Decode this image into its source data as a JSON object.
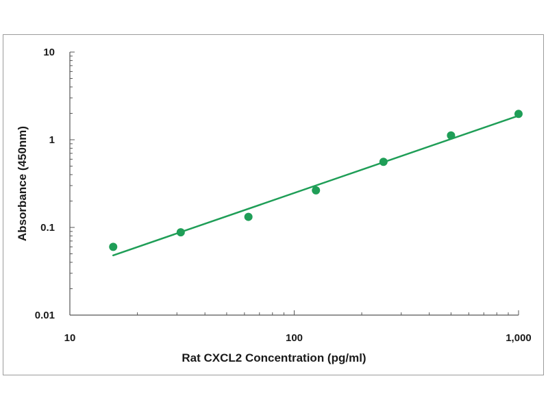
{
  "chart_data": {
    "type": "scatter",
    "xlabel": "Rat CXCL2 Concentration (pg/ml)",
    "ylabel": "Absorbance (450nm)",
    "x_scale": "log",
    "y_scale": "log",
    "xlim": [
      10,
      1000
    ],
    "ylim": [
      0.01,
      10
    ],
    "x_ticks": [
      {
        "value": 10,
        "label": "10"
      },
      {
        "value": 100,
        "label": "100"
      },
      {
        "value": 1000,
        "label": "1,000"
      }
    ],
    "y_ticks": [
      {
        "value": 10,
        "label": "10"
      },
      {
        "value": 1,
        "label": "1"
      },
      {
        "value": 0.1,
        "label": "0.1"
      },
      {
        "value": 0.01,
        "label": "0.01"
      }
    ],
    "grid": false,
    "legend": false,
    "series": [
      {
        "x": [
          15.6,
          31.2,
          62.5,
          125,
          250,
          500,
          1000
        ],
        "y": [
          0.06,
          0.088,
          0.132,
          0.265,
          0.56,
          1.12,
          1.97
        ]
      }
    ],
    "fit_line": {
      "x": [
        15.6,
        1000
      ],
      "y": [
        0.048,
        1.88
      ]
    },
    "colors": {
      "points": "#1f9e57",
      "line": "#1f9e57",
      "axis": "#555555"
    }
  }
}
